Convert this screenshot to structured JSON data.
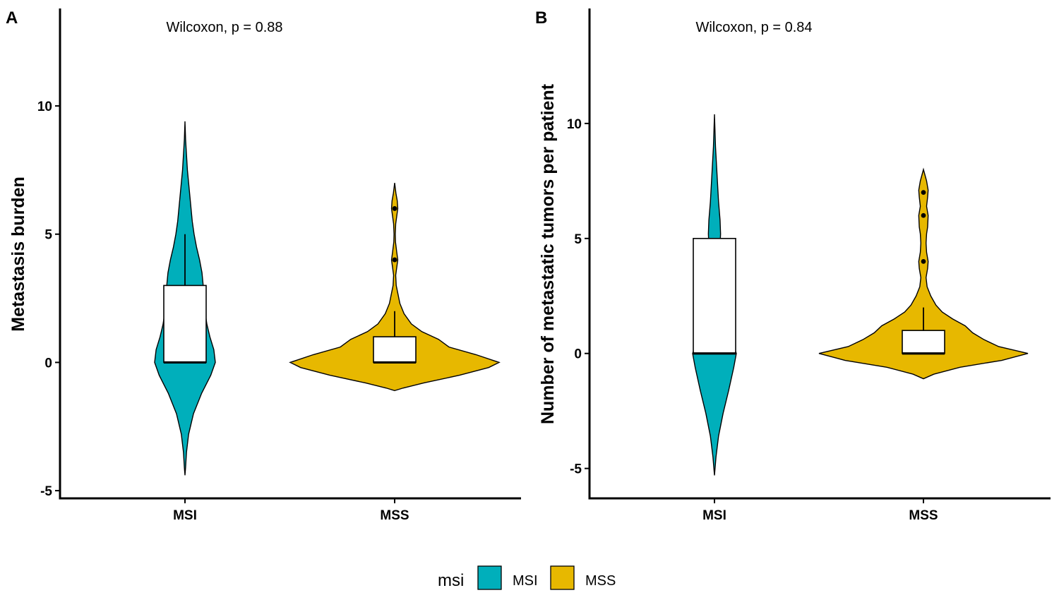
{
  "chart_data": [
    {
      "type": "violin",
      "panel": "A",
      "title": "",
      "xlabel": "",
      "ylabel": "Metastasis burden",
      "annotation": "Wilcoxon, p = 0.88",
      "ylim": [
        -5.3,
        13.8
      ],
      "yticks": [
        -5,
        0,
        5,
        10
      ],
      "ytick_labels": [
        "-5",
        "0",
        "5",
        "10"
      ],
      "categories": [
        "MSI",
        "MSS"
      ],
      "groups": [
        {
          "name": "MSI",
          "color": "#00AFBB",
          "box": {
            "q1": 0,
            "median": 0,
            "q3": 3,
            "whisker_low": 0,
            "whisker_high": 5
          },
          "outliers": [],
          "density": [
            [
              -4.4,
              0
            ],
            [
              -4.1,
              0.02
            ],
            [
              -3.5,
              0.05
            ],
            [
              -2.8,
              0.12
            ],
            [
              -2.0,
              0.28
            ],
            [
              -1.2,
              0.55
            ],
            [
              -0.5,
              0.85
            ],
            [
              0.0,
              1.0
            ],
            [
              0.5,
              0.95
            ],
            [
              1.0,
              0.82
            ],
            [
              1.5,
              0.72
            ],
            [
              2.0,
              0.66
            ],
            [
              2.5,
              0.62
            ],
            [
              3.0,
              0.6
            ],
            [
              3.5,
              0.56
            ],
            [
              4.0,
              0.48
            ],
            [
              4.5,
              0.38
            ],
            [
              5.0,
              0.3
            ],
            [
              5.5,
              0.24
            ],
            [
              6.0,
              0.2
            ],
            [
              6.5,
              0.16
            ],
            [
              7.0,
              0.12
            ],
            [
              7.5,
              0.08
            ],
            [
              8.1,
              0.05
            ],
            [
              8.7,
              0.02
            ],
            [
              9.4,
              0
            ]
          ]
        },
        {
          "name": "MSS",
          "color": "#E7B800",
          "box": {
            "q1": 0,
            "median": 0,
            "q3": 1,
            "whisker_low": 0,
            "whisker_high": 2
          },
          "outliers": [
            4,
            6
          ],
          "density": [
            [
              -1.1,
              0
            ],
            [
              -1.0,
              0.08
            ],
            [
              -0.8,
              0.28
            ],
            [
              -0.5,
              0.62
            ],
            [
              -0.2,
              0.9
            ],
            [
              0.0,
              1.0
            ],
            [
              0.3,
              0.78
            ],
            [
              0.6,
              0.52
            ],
            [
              0.9,
              0.42
            ],
            [
              1.2,
              0.26
            ],
            [
              1.5,
              0.16
            ],
            [
              1.9,
              0.09
            ],
            [
              2.3,
              0.05
            ],
            [
              2.7,
              0.03
            ],
            [
              3.0,
              0.015
            ],
            [
              3.4,
              0.01
            ],
            [
              3.7,
              0.02
            ],
            [
              4.0,
              0.03
            ],
            [
              4.3,
              0.02
            ],
            [
              4.7,
              0.008
            ],
            [
              5.0,
              0.006
            ],
            [
              5.4,
              0.01
            ],
            [
              5.7,
              0.02
            ],
            [
              6.0,
              0.03
            ],
            [
              6.3,
              0.025
            ],
            [
              6.6,
              0.012
            ],
            [
              7.0,
              0
            ]
          ]
        }
      ]
    },
    {
      "type": "violin",
      "panel": "B",
      "title": "",
      "xlabel": "",
      "ylabel": "Number of metastatic tumors per patient",
      "annotation": "Wilcoxon, p = 0.84",
      "ylim": [
        -6.3,
        15.0
      ],
      "yticks": [
        -5,
        0,
        5,
        10
      ],
      "ytick_labels": [
        "-5",
        "0",
        "5",
        "10"
      ],
      "categories": [
        "MSI",
        "MSS"
      ],
      "groups": [
        {
          "name": "MSI",
          "color": "#00AFBB",
          "box": {
            "q1": 0,
            "median": 0,
            "q3": 5,
            "whisker_low": 0,
            "whisker_high": 5
          },
          "outliers": [],
          "density": [
            [
              -5.3,
              0
            ],
            [
              -4.5,
              0.03
            ],
            [
              -3.6,
              0.08
            ],
            [
              -2.6,
              0.17
            ],
            [
              -1.6,
              0.28
            ],
            [
              -0.6,
              0.38
            ],
            [
              0.0,
              0.43
            ],
            [
              0.6,
              0.34
            ],
            [
              1.2,
              0.2
            ],
            [
              2.0,
              0.11
            ],
            [
              3.0,
              0.08
            ],
            [
              4.0,
              0.09
            ],
            [
              4.7,
              0.11
            ],
            [
              5.2,
              0.12
            ],
            [
              5.8,
              0.11
            ],
            [
              6.6,
              0.08
            ],
            [
              7.4,
              0.06
            ],
            [
              8.2,
              0.04
            ],
            [
              9.0,
              0.02
            ],
            [
              9.7,
              0.01
            ],
            [
              10.4,
              0
            ]
          ]
        },
        {
          "name": "MSS",
          "color": "#E7B800",
          "box": {
            "q1": 0,
            "median": 0,
            "q3": 1,
            "whisker_low": 0,
            "whisker_high": 2
          },
          "outliers": [
            4,
            6,
            7
          ],
          "density": [
            [
              -1.1,
              0
            ],
            [
              -0.9,
              0.1
            ],
            [
              -0.6,
              0.35
            ],
            [
              -0.3,
              0.75
            ],
            [
              0.0,
              1.0
            ],
            [
              0.3,
              0.72
            ],
            [
              0.6,
              0.58
            ],
            [
              0.9,
              0.47
            ],
            [
              1.2,
              0.4
            ],
            [
              1.5,
              0.28
            ],
            [
              1.8,
              0.18
            ],
            [
              2.1,
              0.12
            ],
            [
              2.5,
              0.07
            ],
            [
              2.9,
              0.035
            ],
            [
              3.3,
              0.025
            ],
            [
              3.7,
              0.04
            ],
            [
              4.0,
              0.045
            ],
            [
              4.4,
              0.03
            ],
            [
              4.8,
              0.025
            ],
            [
              5.2,
              0.03
            ],
            [
              5.5,
              0.04
            ],
            [
              6.0,
              0.045
            ],
            [
              6.4,
              0.03
            ],
            [
              6.8,
              0.04
            ],
            [
              7.1,
              0.045
            ],
            [
              7.5,
              0.03
            ],
            [
              8.0,
              0
            ]
          ]
        }
      ]
    }
  ],
  "legend": {
    "title": "msi",
    "items": [
      {
        "label": "MSI",
        "color": "#00AFBB"
      },
      {
        "label": "MSS",
        "color": "#E7B800"
      }
    ]
  }
}
